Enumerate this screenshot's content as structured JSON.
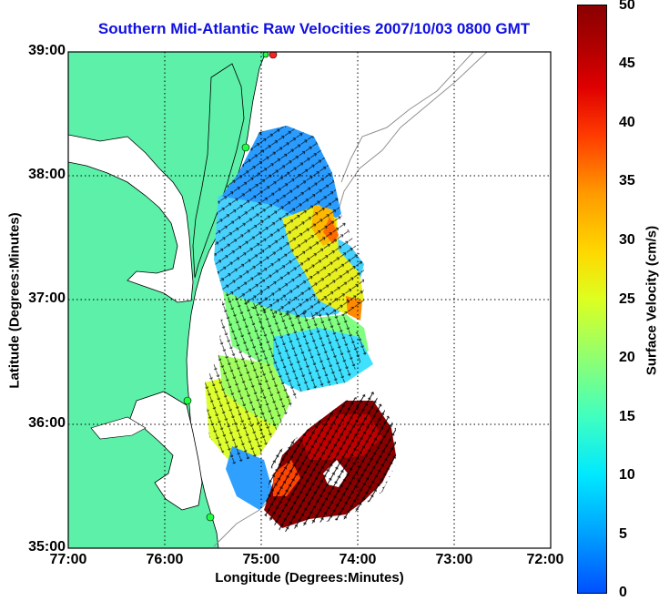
{
  "title": "Southern Mid-Atlantic Raw Velocities 2007/10/03 0800 GMT",
  "x_axis": {
    "label": "Longitude (Degrees:Minutes)",
    "ticks": [
      "77:00",
      "76:00",
      "75:00",
      "74:00",
      "73:00",
      "72:00"
    ]
  },
  "y_axis": {
    "label": "Latitude (Degrees:Minutes)",
    "ticks": [
      "39:00",
      "38:00",
      "37:00",
      "36:00",
      "35:00"
    ]
  },
  "colorbar": {
    "label": "Surface Velocity (cm/s)",
    "ticks": [
      "50",
      "45",
      "40",
      "35",
      "30",
      "25",
      "20",
      "15",
      "10",
      "5",
      "0"
    ],
    "range": [
      0,
      50
    ],
    "colors": {
      "low": "#0050ff",
      "mid": "#ddff20",
      "high": "#8a0000"
    }
  },
  "map": {
    "land_color": "#5cf0a8",
    "water_color": "#ffffff",
    "gridlines": "dotted",
    "extent": {
      "lon": [
        -77,
        -72
      ],
      "lat": [
        35,
        39
      ]
    }
  }
}
